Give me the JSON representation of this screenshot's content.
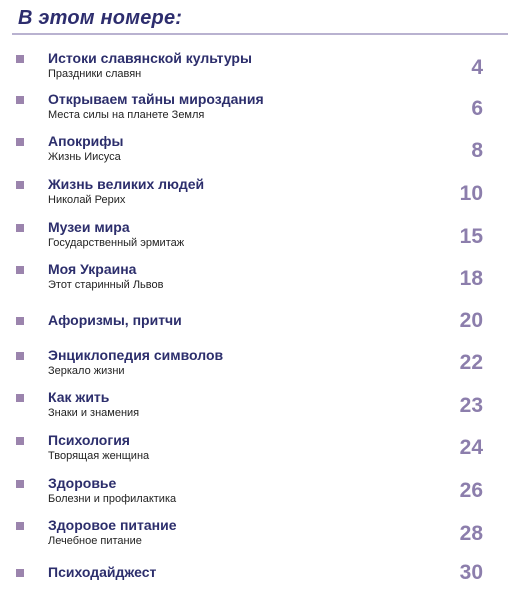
{
  "header": {
    "title": "В этом номере:"
  },
  "colors": {
    "title": "#2c2e6c",
    "bullet": "#9b84ad",
    "page_number": "#8c7eac",
    "rule": "#b9b2d0"
  },
  "toc": {
    "items": [
      {
        "title": "Истоки славянской культуры",
        "subtitle": "Праздники славян",
        "page": "4"
      },
      {
        "title": "Открываем тайны мироздания",
        "subtitle": "Места силы на планете Земля",
        "page": "6"
      },
      {
        "title": "Апокрифы",
        "subtitle": "Жизнь Иисуса",
        "page": "8"
      },
      {
        "title": "Жизнь великих людей",
        "subtitle": "Николай Рерих",
        "page": "10"
      },
      {
        "title": "Музеи мира",
        "subtitle": "Государственный эрмитаж",
        "page": "15"
      },
      {
        "title": "Моя Украина",
        "subtitle": "Этот старинный Львов",
        "page": "18"
      },
      {
        "title": "Афоризмы, притчи",
        "subtitle": "",
        "page": "20"
      },
      {
        "title": "Энциклопедия символов",
        "subtitle": "Зеркало жизни",
        "page": "22"
      },
      {
        "title": "Как жить",
        "subtitle": "Знаки и знамения",
        "page": "23"
      },
      {
        "title": "Психология",
        "subtitle": "Творящая женщина",
        "page": "24"
      },
      {
        "title": "Здоровье",
        "subtitle": "Болезни и профилактика",
        "page": "26"
      },
      {
        "title": "Здоровое питание",
        "subtitle": "Лечебное питание",
        "page": "28"
      },
      {
        "title": "Психодайджест",
        "subtitle": "",
        "page": "30"
      }
    ]
  }
}
